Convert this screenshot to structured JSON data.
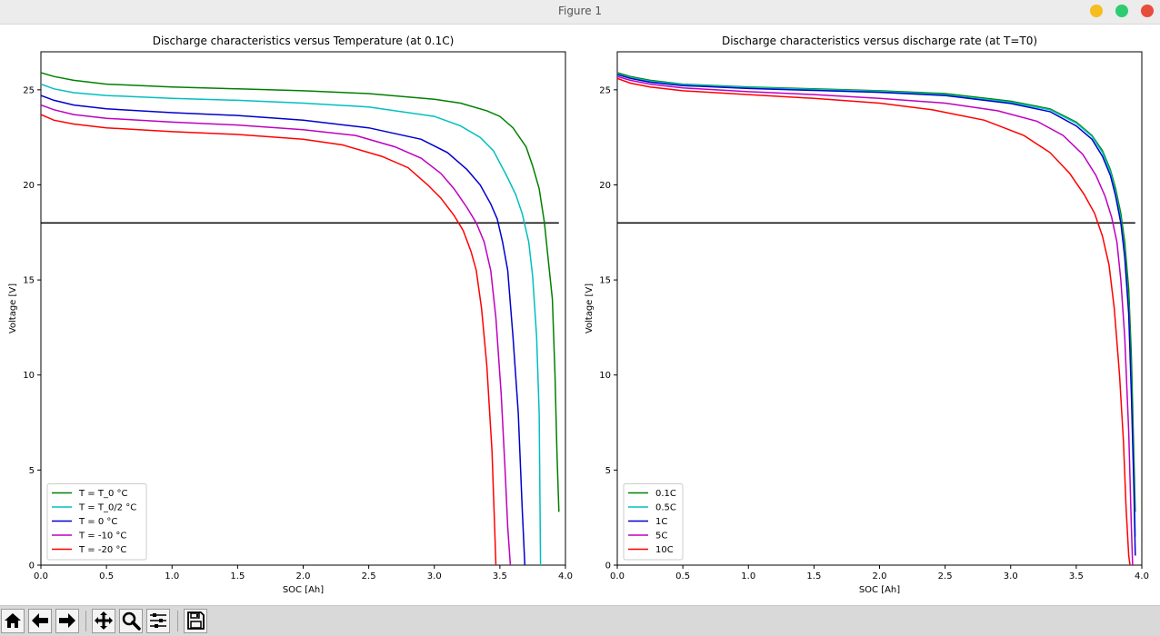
{
  "window": {
    "title": "Figure 1"
  },
  "toolbar": {
    "buttons": [
      {
        "icon": "home-icon"
      },
      {
        "icon": "back-arrow-icon"
      },
      {
        "icon": "forward-arrow-icon"
      },
      {
        "icon": "pan-icon"
      },
      {
        "icon": "zoom-icon"
      },
      {
        "icon": "subplots-icon"
      },
      {
        "icon": "save-icon"
      }
    ]
  },
  "chart_data": [
    {
      "type": "line",
      "title": "Discharge characteristics versus Temperature (at 0.1C)",
      "xlabel": "SOC [Ah]",
      "ylabel": "Voltage [V]",
      "xlim": [
        0,
        4.0
      ],
      "ylim": [
        0,
        27
      ],
      "xticks": [
        0.0,
        0.5,
        1.0,
        1.5,
        2.0,
        2.5,
        3.0,
        3.5,
        4.0
      ],
      "yticks": [
        0,
        5,
        10,
        15,
        20,
        25
      ],
      "legend": "lower-left",
      "grid": false,
      "hline": {
        "y": 18,
        "x": [
          0,
          3.95
        ],
        "color": "#000000"
      },
      "series": [
        {
          "name": "T = T_0 °C",
          "color": "#008000",
          "x": [
            0,
            0.1,
            0.25,
            0.5,
            1.0,
            1.5,
            2.0,
            2.5,
            3.0,
            3.2,
            3.4,
            3.5,
            3.6,
            3.7,
            3.75,
            3.8,
            3.84,
            3.87,
            3.9,
            3.92,
            3.935,
            3.95
          ],
          "y": [
            25.9,
            25.7,
            25.5,
            25.3,
            25.15,
            25.05,
            24.95,
            24.8,
            24.5,
            24.3,
            23.9,
            23.6,
            23.0,
            22.0,
            21.0,
            19.8,
            18.0,
            16.0,
            14.0,
            10.0,
            6.0,
            2.8
          ]
        },
        {
          "name": "T = T_0/2 °C",
          "color": "#00bfbf",
          "x": [
            0,
            0.1,
            0.25,
            0.5,
            1.0,
            1.5,
            2.0,
            2.5,
            3.0,
            3.2,
            3.35,
            3.45,
            3.55,
            3.62,
            3.67,
            3.72,
            3.75,
            3.78,
            3.8,
            3.81
          ],
          "y": [
            25.3,
            25.05,
            24.85,
            24.7,
            24.55,
            24.45,
            24.3,
            24.1,
            23.6,
            23.1,
            22.5,
            21.8,
            20.5,
            19.5,
            18.5,
            17.0,
            15.2,
            12.0,
            8.0,
            0
          ]
        },
        {
          "name": "T = 0 °C",
          "color": "#0000cc",
          "x": [
            0,
            0.1,
            0.25,
            0.5,
            1.0,
            1.5,
            2.0,
            2.5,
            2.9,
            3.1,
            3.25,
            3.35,
            3.43,
            3.48,
            3.52,
            3.56,
            3.6,
            3.64,
            3.67,
            3.69
          ],
          "y": [
            24.7,
            24.45,
            24.2,
            24.0,
            23.8,
            23.65,
            23.4,
            23.0,
            22.4,
            21.7,
            20.8,
            20.0,
            19.0,
            18.2,
            17.0,
            15.5,
            12.0,
            8.0,
            3.0,
            0
          ]
        },
        {
          "name": "T = -10 °C",
          "color": "#bf00bf",
          "x": [
            0,
            0.1,
            0.25,
            0.5,
            1.0,
            1.5,
            2.0,
            2.4,
            2.7,
            2.9,
            3.05,
            3.15,
            3.25,
            3.32,
            3.38,
            3.43,
            3.47,
            3.51,
            3.54,
            3.56,
            3.58
          ],
          "y": [
            24.2,
            23.95,
            23.7,
            23.5,
            23.3,
            23.15,
            22.9,
            22.6,
            22.0,
            21.4,
            20.6,
            19.8,
            18.8,
            18.0,
            17.0,
            15.5,
            13.0,
            9.0,
            5.0,
            2.0,
            0
          ]
        },
        {
          "name": "T = -20 °C",
          "color": "#ff0000",
          "x": [
            0,
            0.1,
            0.25,
            0.5,
            1.0,
            1.5,
            2.0,
            2.3,
            2.6,
            2.8,
            2.95,
            3.05,
            3.15,
            3.22,
            3.28,
            3.32,
            3.36,
            3.4,
            3.44,
            3.46,
            3.47
          ],
          "y": [
            23.7,
            23.4,
            23.2,
            23.0,
            22.8,
            22.65,
            22.4,
            22.1,
            21.5,
            20.9,
            20.0,
            19.3,
            18.4,
            17.6,
            16.5,
            15.5,
            13.5,
            10.5,
            6.0,
            2.0,
            0
          ]
        }
      ]
    },
    {
      "type": "line",
      "title": "Discharge characteristics versus discharge rate (at T=T0)",
      "xlabel": "SOC [Ah]",
      "ylabel": "Voltage [V]",
      "xlim": [
        0,
        4.0
      ],
      "ylim": [
        0,
        27
      ],
      "xticks": [
        0.0,
        0.5,
        1.0,
        1.5,
        2.0,
        2.5,
        3.0,
        3.5,
        4.0
      ],
      "yticks": [
        0,
        5,
        10,
        15,
        20,
        25
      ],
      "legend": "lower-left",
      "grid": false,
      "hline": {
        "y": 18,
        "x": [
          0,
          3.95
        ],
        "color": "#000000"
      },
      "series": [
        {
          "name": "0.1C",
          "color": "#008000",
          "x": [
            0,
            0.1,
            0.25,
            0.5,
            1.0,
            1.5,
            2.0,
            2.5,
            3.0,
            3.3,
            3.5,
            3.62,
            3.7,
            3.76,
            3.8,
            3.84,
            3.87,
            3.9,
            3.92,
            3.935,
            3.95
          ],
          "y": [
            25.9,
            25.7,
            25.5,
            25.3,
            25.15,
            25.05,
            24.95,
            24.8,
            24.4,
            24.0,
            23.3,
            22.6,
            21.8,
            20.8,
            19.8,
            18.5,
            17.0,
            14.5,
            11.0,
            7.0,
            2.8
          ]
        },
        {
          "name": "0.5C",
          "color": "#00bfbf",
          "x": [
            0,
            0.1,
            0.25,
            0.5,
            1.0,
            1.5,
            2.0,
            2.5,
            3.0,
            3.3,
            3.5,
            3.62,
            3.7,
            3.76,
            3.8,
            3.84,
            3.87,
            3.9,
            3.92,
            3.94,
            3.95
          ],
          "y": [
            25.85,
            25.65,
            25.45,
            25.28,
            25.12,
            25.02,
            24.92,
            24.75,
            24.35,
            23.95,
            23.25,
            22.55,
            21.7,
            20.7,
            19.6,
            18.2,
            16.5,
            13.5,
            9.5,
            4.5,
            1.5
          ]
        },
        {
          "name": "1C",
          "color": "#0000cc",
          "x": [
            0,
            0.1,
            0.25,
            0.5,
            1.0,
            1.5,
            2.0,
            2.5,
            3.0,
            3.3,
            3.5,
            3.62,
            3.7,
            3.76,
            3.8,
            3.84,
            3.87,
            3.9,
            3.92,
            3.94,
            3.95
          ],
          "y": [
            25.8,
            25.6,
            25.4,
            25.22,
            25.07,
            24.97,
            24.87,
            24.7,
            24.28,
            23.85,
            23.1,
            22.4,
            21.5,
            20.5,
            19.4,
            18.0,
            16.2,
            13.2,
            9.0,
            4.0,
            0.5
          ]
        },
        {
          "name": "5C",
          "color": "#bf00bf",
          "x": [
            0,
            0.1,
            0.25,
            0.5,
            1.0,
            1.5,
            2.0,
            2.5,
            2.9,
            3.2,
            3.4,
            3.55,
            3.65,
            3.72,
            3.77,
            3.81,
            3.84,
            3.87,
            3.9,
            3.92,
            3.93
          ],
          "y": [
            25.7,
            25.5,
            25.3,
            25.1,
            24.9,
            24.75,
            24.55,
            24.3,
            23.9,
            23.35,
            22.6,
            21.6,
            20.5,
            19.4,
            18.3,
            17.0,
            15.0,
            12.0,
            7.0,
            2.0,
            0
          ]
        },
        {
          "name": "10C",
          "color": "#ff0000",
          "x": [
            0,
            0.1,
            0.25,
            0.5,
            1.0,
            1.5,
            2.0,
            2.4,
            2.8,
            3.1,
            3.3,
            3.45,
            3.56,
            3.64,
            3.7,
            3.75,
            3.79,
            3.83,
            3.86,
            3.88,
            3.9,
            3.91
          ],
          "y": [
            25.6,
            25.35,
            25.15,
            24.95,
            24.75,
            24.55,
            24.3,
            23.95,
            23.4,
            22.6,
            21.7,
            20.6,
            19.5,
            18.5,
            17.3,
            15.8,
            13.5,
            10.0,
            6.5,
            3.0,
            0.5,
            0
          ]
        }
      ]
    }
  ]
}
